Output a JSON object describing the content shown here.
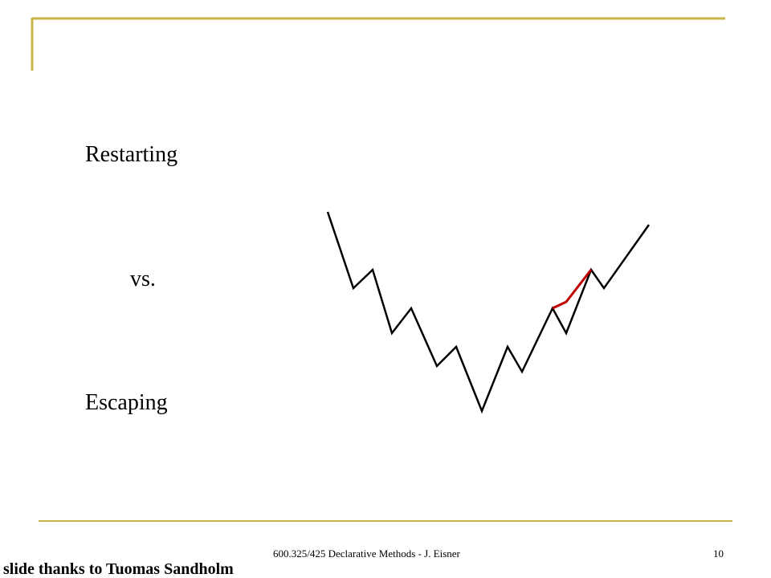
{
  "slide": {
    "labels": [
      "Restarting",
      "vs.",
      "Escaping"
    ],
    "footer": {
      "center": "600.325/425 Declarative Methods - J. Eisner",
      "page": "10",
      "credit": "slide thanks to Tuomas Sandholm"
    }
  }
}
